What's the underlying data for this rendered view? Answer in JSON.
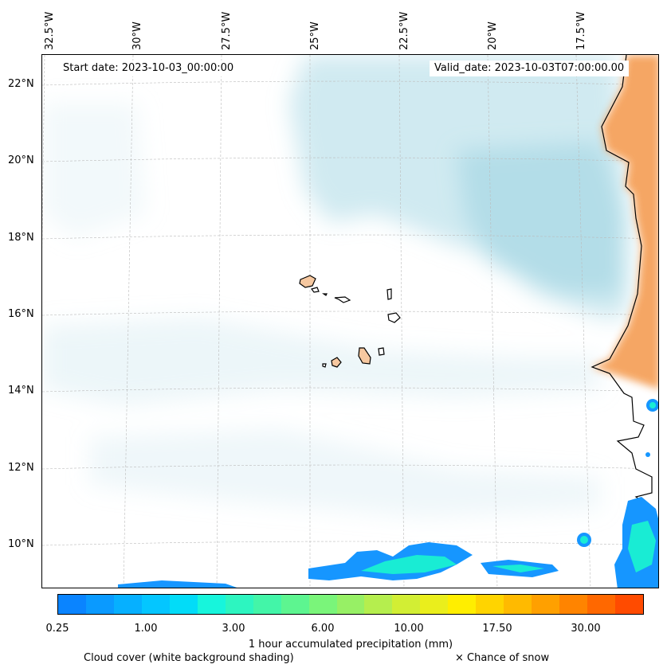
{
  "map": {
    "start_label": "Start date: 2023-10-03_00:00:00",
    "valid_label": "Valid_date: 2023-10-03T07:00:00.00",
    "lon_labels": [
      "32.5°W",
      "30°W",
      "27.5°W",
      "25°W",
      "22.5°W",
      "20°W",
      "17.5°W"
    ],
    "lat_labels": [
      "22°N",
      "20°N",
      "18°N",
      "16°N",
      "14°N",
      "12°N",
      "10°N"
    ],
    "colors": {
      "cloud": "#a9d8e6",
      "land": "#f5a25c",
      "island": "#f6c8a0",
      "precip_dark": "#1696ff",
      "precip_light": "#19ecd4",
      "coastline": "#000000"
    }
  },
  "colorbar": {
    "colors": [
      "#0a84ff",
      "#0a9aff",
      "#06b0ff",
      "#04c6ff",
      "#02dcf8",
      "#17f5dc",
      "#2df5c0",
      "#43f5a8",
      "#5df590",
      "#7af57a",
      "#97f065",
      "#b5ee4e",
      "#d2ee34",
      "#eaee1c",
      "#ffee00",
      "#ffd400",
      "#ffba00",
      "#ffa000",
      "#ff8400",
      "#ff6800",
      "#ff4b00"
    ],
    "ticks": [
      "0.25",
      "1.00",
      "3.00",
      "6.00",
      "10.00",
      "17.50",
      "30.00"
    ],
    "label": "1 hour accumulated precipitation (mm)"
  },
  "footer": {
    "cloud_note": "Cloud cover (white background shading)",
    "snow_note": "× Chance of snow"
  }
}
